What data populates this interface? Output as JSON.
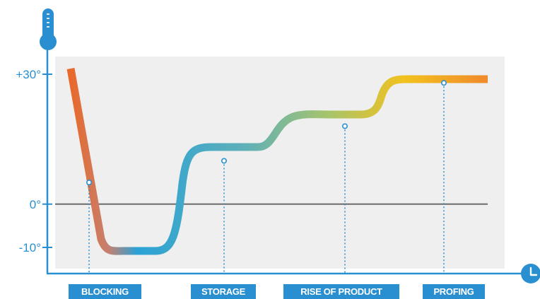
{
  "chart_data": {
    "type": "line",
    "yticks": [
      {
        "value": 30,
        "label": "+30°"
      },
      {
        "value": 0,
        "label": "0°"
      },
      {
        "value": -10,
        "label": "-10°"
      }
    ],
    "ylim": [
      -12,
      32
    ],
    "stages": [
      "BLOCKING",
      "STORAGE",
      "RISE OF PRODUCT",
      "PROFING"
    ],
    "marker_values": [
      5,
      10,
      18,
      28
    ],
    "reference_line": 0,
    "colors": {
      "axis": "#2a8fd0",
      "plot_bg": "#efefef",
      "zero_line": "#6b6b6b",
      "cold": "#2aa2d6",
      "warm": "#f2c21e",
      "hot": "#e9692a"
    },
    "icons": [
      "thermometer-icon",
      "clock-icon"
    ]
  }
}
